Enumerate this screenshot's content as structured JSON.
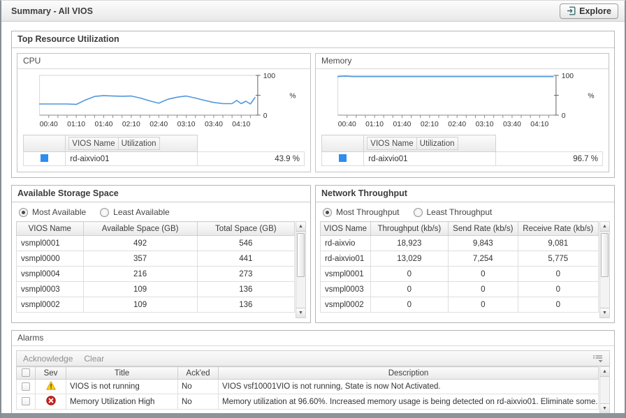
{
  "titlebar": {
    "title": "Summary - All VIOS",
    "explore_label": "Explore"
  },
  "top_resource": {
    "title": "Top Resource Utilization",
    "cpu": {
      "title": "CPU",
      "legend": {
        "headers": [
          "VIOS Name",
          "Utilization"
        ],
        "rows": [
          {
            "color": "#2e8ded",
            "name": "rd-aixvio01",
            "value": "43.9 %"
          }
        ]
      }
    },
    "memory": {
      "title": "Memory",
      "legend": {
        "headers": [
          "VIOS Name",
          "Utilization"
        ],
        "rows": [
          {
            "color": "#2e8ded",
            "name": "rd-aixvio01",
            "value": "96.7 %"
          }
        ]
      }
    }
  },
  "chart_data": [
    {
      "type": "line",
      "title": "CPU",
      "ylabel": "%",
      "ylim": [
        0,
        100
      ],
      "yticks": [
        0,
        50,
        100
      ],
      "x_range": [
        30,
        268
      ],
      "xticklabels": [
        "00:40",
        "01:10",
        "01:40",
        "02:10",
        "02:40",
        "03:10",
        "03:40",
        "04:10"
      ],
      "xticklabel_minutes": [
        40,
        70,
        100,
        130,
        160,
        190,
        220,
        250
      ],
      "color": "#4f97dd",
      "series": [
        {
          "name": "rd-aixvio01",
          "points": [
            [
              30,
              28
            ],
            [
              40,
              28
            ],
            [
              50,
              28
            ],
            [
              60,
              28
            ],
            [
              70,
              27
            ],
            [
              80,
              38
            ],
            [
              90,
              47
            ],
            [
              95,
              48
            ],
            [
              100,
              49
            ],
            [
              110,
              48
            ],
            [
              120,
              47.5
            ],
            [
              130,
              48
            ],
            [
              140,
              43
            ],
            [
              150,
              36
            ],
            [
              160,
              30
            ],
            [
              170,
              40
            ],
            [
              180,
              45
            ],
            [
              190,
              48
            ],
            [
              200,
              43
            ],
            [
              210,
              37
            ],
            [
              220,
              32
            ],
            [
              230,
              29
            ],
            [
              240,
              29
            ],
            [
              245,
              37
            ],
            [
              250,
              29
            ],
            [
              255,
              35
            ],
            [
              260,
              28
            ],
            [
              265,
              44
            ]
          ]
        }
      ]
    },
    {
      "type": "line",
      "title": "Memory",
      "ylabel": "%",
      "ylim": [
        0,
        100
      ],
      "yticks": [
        0,
        50,
        100
      ],
      "x_range": [
        30,
        268
      ],
      "xticklabels": [
        "00:40",
        "01:10",
        "01:40",
        "02:10",
        "02:40",
        "03:10",
        "03:40",
        "04:10"
      ],
      "xticklabel_minutes": [
        40,
        70,
        100,
        130,
        160,
        190,
        220,
        250
      ],
      "color": "#4f97dd",
      "series": [
        {
          "name": "rd-aixvio01",
          "points": [
            [
              30,
              97
            ],
            [
              38,
              98
            ],
            [
              46,
              97
            ],
            [
              150,
              97
            ],
            [
              265,
              97
            ]
          ]
        }
      ]
    }
  ],
  "storage": {
    "title": "Available Storage Space",
    "radios": [
      {
        "label": "Most Available",
        "selected": true
      },
      {
        "label": "Least Available",
        "selected": false
      }
    ],
    "headers": [
      "VIOS Name",
      "Available Space (GB)",
      "Total Space (GB)"
    ],
    "rows": [
      [
        "vsmpl0001",
        "492",
        "546"
      ],
      [
        "vsmpl0000",
        "357",
        "441"
      ],
      [
        "vsmpl0004",
        "216",
        "273"
      ],
      [
        "vsmpl0003",
        "109",
        "136"
      ],
      [
        "vsmpl0002",
        "109",
        "136"
      ]
    ]
  },
  "network": {
    "title": "Network Throughput",
    "radios": [
      {
        "label": "Most Throughput",
        "selected": true
      },
      {
        "label": "Least Throughput",
        "selected": false
      }
    ],
    "headers": [
      "VIOS Name",
      "Throughput (kb/s)",
      "Send Rate (kb/s)",
      "Receive Rate (kb/s)"
    ],
    "rows": [
      [
        "rd-aixvio",
        "18,923",
        "9,843",
        "9,081"
      ],
      [
        "rd-aixvio01",
        "13,029",
        "7,254",
        "5,775"
      ],
      [
        "vsmpl0001",
        "0",
        "0",
        "0"
      ],
      [
        "vsmpl0003",
        "0",
        "0",
        "0"
      ],
      [
        "vsmpl0002",
        "0",
        "0",
        "0"
      ]
    ]
  },
  "alarms": {
    "title": "Alarms",
    "toolbar": {
      "acknowledge_label": "Acknowledge",
      "clear_label": "Clear"
    },
    "headers": [
      "Sev",
      "Title",
      "Ack'ed",
      "Description"
    ],
    "rows": [
      {
        "severity": "warning",
        "title": "VIOS is not running",
        "acked": "No",
        "description": "VIOS vsf10001VIO is not running, State is now Not Activated."
      },
      {
        "severity": "error",
        "title": "Memory Utilization High",
        "acked": "No",
        "description": "Memory utilization at 96.60%. Increased memory usage is being detected on rd-aixvio01. Eliminate some..."
      }
    ]
  }
}
